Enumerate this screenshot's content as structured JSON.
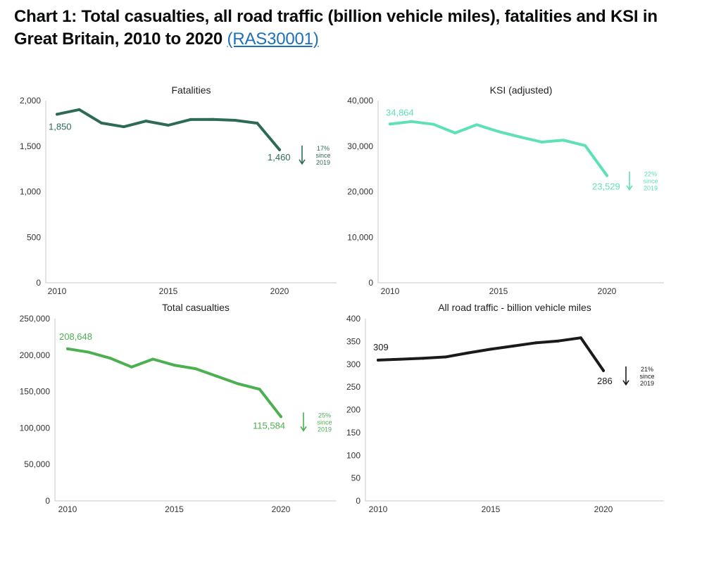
{
  "heading": {
    "text": "Chart 1: Total casualties, all road traffic (billion vehicle miles), fatalities and KSI in Great Britain, 2010 to 2020 ",
    "link_text": "(RAS30001)"
  },
  "chart_data": [
    {
      "type": "line",
      "title": "Fatalities",
      "color": "#2e6b57",
      "x": [
        2010,
        2011,
        2012,
        2013,
        2014,
        2015,
        2016,
        2017,
        2018,
        2019,
        2020
      ],
      "values": [
        1850,
        1901,
        1754,
        1713,
        1775,
        1730,
        1792,
        1793,
        1784,
        1752,
        1460
      ],
      "ylim": [
        0,
        2000
      ],
      "yticks": [
        0,
        500,
        1000,
        1500,
        2000
      ],
      "ytick_labels": [
        "0",
        "500",
        "1,000",
        "1,500",
        "2,000"
      ],
      "xticks": [
        2010,
        2015,
        2020
      ],
      "xtick_labels": [
        "2010",
        "2015",
        "2020"
      ],
      "start_label": "1,850",
      "end_label": "1,460",
      "change_note": [
        "17%",
        "since",
        "2019"
      ]
    },
    {
      "type": "line",
      "title": "KSI (adjusted)",
      "color": "#5ee0b8",
      "x": [
        2010,
        2011,
        2012,
        2013,
        2014,
        2015,
        2016,
        2017,
        2018,
        2019,
        2020
      ],
      "values": [
        34864,
        35400,
        34800,
        32900,
        34700,
        33200,
        32000,
        30900,
        31300,
        30100,
        23529
      ],
      "ylim": [
        0,
        40000
      ],
      "yticks": [
        0,
        10000,
        20000,
        30000,
        40000
      ],
      "ytick_labels": [
        "0",
        "10,000",
        "20,000",
        "30,000",
        "40,000"
      ],
      "xticks": [
        2010,
        2015,
        2020
      ],
      "xtick_labels": [
        "2010",
        "2015",
        "2020"
      ],
      "start_label": "34,864",
      "end_label": "23,529",
      "change_note": [
        "22%",
        "since",
        "2019"
      ]
    },
    {
      "type": "line",
      "title": "Total casualties",
      "color": "#4caf50",
      "x": [
        2010,
        2011,
        2012,
        2013,
        2014,
        2015,
        2016,
        2017,
        2018,
        2019,
        2020
      ],
      "values": [
        208648,
        203950,
        195723,
        183670,
        194477,
        186189,
        181384,
        170993,
        160597,
        153158,
        115584
      ],
      "ylim": [
        0,
        250000
      ],
      "yticks": [
        0,
        50000,
        100000,
        150000,
        200000,
        250000
      ],
      "ytick_labels": [
        "0",
        "50,000",
        "100,000",
        "150,000",
        "200,000",
        "250,000"
      ],
      "xticks": [
        2010,
        2015,
        2020
      ],
      "xtick_labels": [
        "2010",
        "2015",
        "2020"
      ],
      "start_label": "208,648",
      "end_label": "115,584",
      "change_note": [
        "25%",
        "since",
        "2019"
      ]
    },
    {
      "type": "line",
      "title": "All road traffic - billion vehicle miles",
      "color": "#1a1a1a",
      "x": [
        2010,
        2011,
        2012,
        2013,
        2014,
        2015,
        2016,
        2017,
        2018,
        2019,
        2020
      ],
      "values": [
        309,
        311,
        313,
        316,
        325,
        333,
        340,
        347,
        351,
        358,
        286
      ],
      "ylim": [
        0,
        400
      ],
      "yticks": [
        0,
        50,
        100,
        150,
        200,
        250,
        300,
        350,
        400
      ],
      "ytick_labels": [
        "0",
        "50",
        "100",
        "150",
        "200",
        "250",
        "300",
        "350",
        "400"
      ],
      "xticks": [
        2010,
        2015,
        2020
      ],
      "xtick_labels": [
        "2010",
        "2015",
        "2020"
      ],
      "start_label": "309",
      "end_label": "286",
      "change_note": [
        "21%",
        "since",
        "2019"
      ]
    }
  ]
}
